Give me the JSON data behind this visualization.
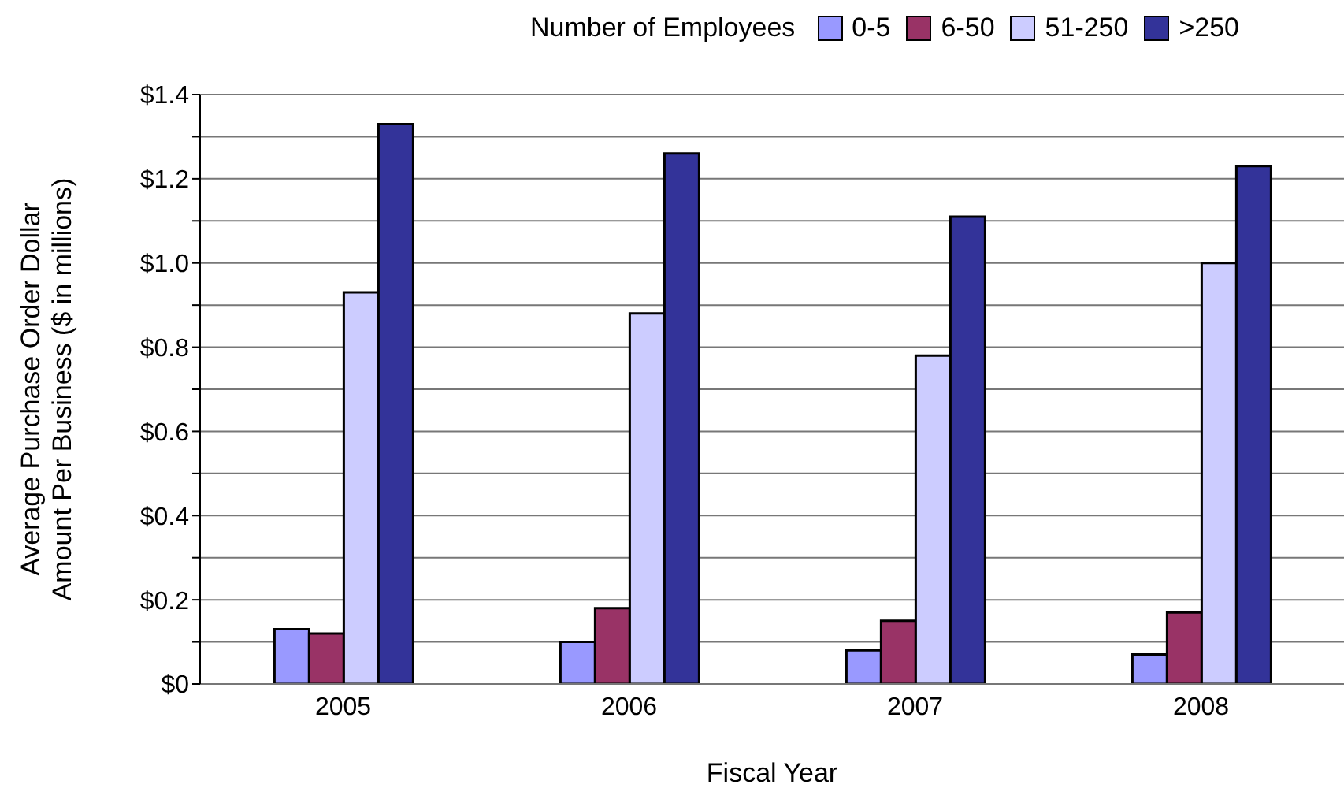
{
  "chart_data": {
    "type": "bar",
    "xlabel": "Fiscal Year",
    "ylabel": "Average Purchase Order Dollar\nAmount Per Business ($ in millions)",
    "legend_title": "Number of Employees",
    "categories": [
      "2005",
      "2006",
      "2007",
      "2008"
    ],
    "series": [
      {
        "name": "0-5",
        "color": "#9999ff",
        "values": [
          0.13,
          0.1,
          0.08,
          0.07
        ]
      },
      {
        "name": "6-50",
        "color": "#993366",
        "values": [
          0.12,
          0.18,
          0.15,
          0.17
        ]
      },
      {
        "name": "51-250",
        "color": "#ccccff",
        "values": [
          0.93,
          0.88,
          0.78,
          1.0
        ]
      },
      {
        "name": ">250",
        "color": "#333399",
        "values": [
          1.33,
          1.26,
          1.11,
          1.23
        ]
      }
    ],
    "ylim": [
      0,
      1.4
    ],
    "yticks": [
      {
        "value": 0,
        "label": "$0"
      },
      {
        "value": 0.1,
        "label": null
      },
      {
        "value": 0.2,
        "label": "$0.2"
      },
      {
        "value": 0.3,
        "label": null
      },
      {
        "value": 0.4,
        "label": "$0.4"
      },
      {
        "value": 0.5,
        "label": null
      },
      {
        "value": 0.6,
        "label": "$0.6"
      },
      {
        "value": 0.7,
        "label": null
      },
      {
        "value": 0.8,
        "label": "$0.8"
      },
      {
        "value": 0.9,
        "label": null
      },
      {
        "value": 1.0,
        "label": "$1.0"
      },
      {
        "value": 1.1,
        "label": null
      },
      {
        "value": 1.2,
        "label": "$1.2"
      },
      {
        "value": 1.3,
        "label": null
      },
      {
        "value": 1.4,
        "label": "$1.4"
      }
    ],
    "grid": "y",
    "legend": "top"
  }
}
